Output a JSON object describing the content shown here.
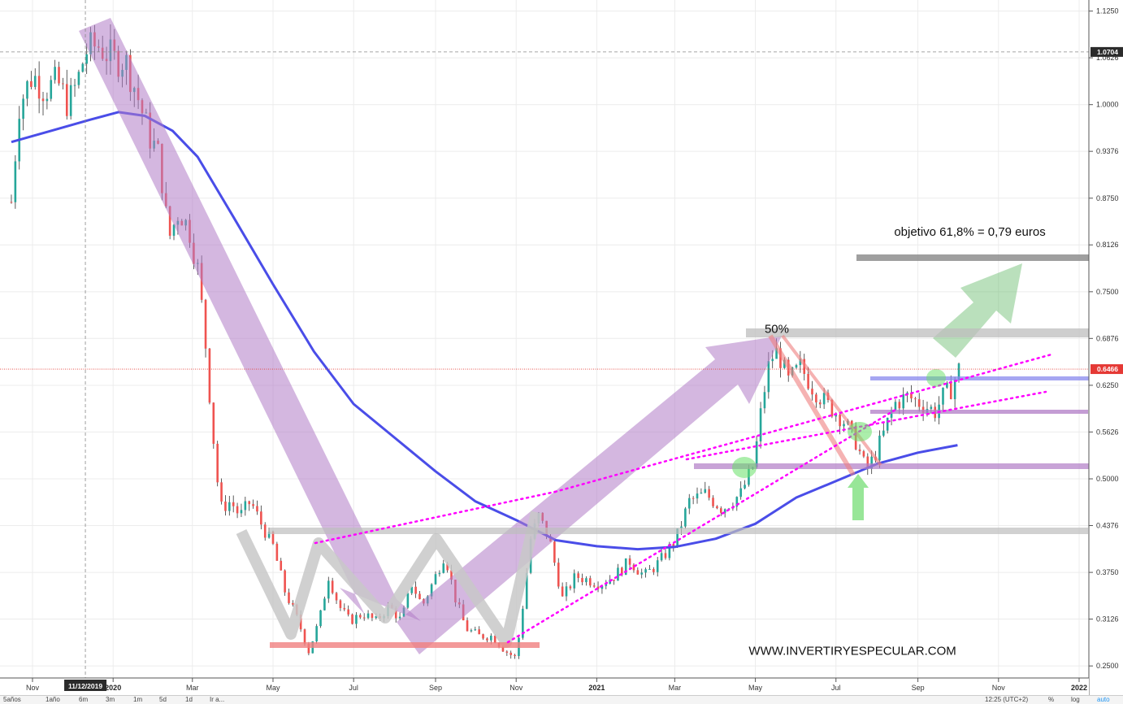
{
  "chart_data": {
    "type": "candlestick",
    "title": "",
    "xlabel": "",
    "ylabel": "",
    "ylim": [
      0.2339,
      1.1398
    ],
    "y_ticks": [
      "1.1250",
      "1.0626",
      "1.0000",
      "0.9376",
      "0.8750",
      "0.8126",
      "0.7500",
      "0.6876",
      "0.6250",
      "0.5626",
      "0.5000",
      "0.4376",
      "0.3750",
      "0.3126",
      "0.2500"
    ],
    "x_ticks": [
      {
        "label": "Nov",
        "date": "2019-11"
      },
      {
        "label": "2020",
        "date": "2020-01"
      },
      {
        "label": "Mar",
        "date": "2020-03"
      },
      {
        "label": "May",
        "date": "2020-05"
      },
      {
        "label": "Jul",
        "date": "2020-07"
      },
      {
        "label": "Sep",
        "date": "2020-09"
      },
      {
        "label": "Nov",
        "date": "2020-11"
      },
      {
        "label": "2021",
        "date": "2021-01"
      },
      {
        "label": "Mar",
        "date": "2021-03"
      },
      {
        "label": "May",
        "date": "2021-05"
      },
      {
        "label": "Jul",
        "date": "2021-07"
      },
      {
        "label": "Sep",
        "date": "2021-09"
      },
      {
        "label": "Nov",
        "date": "2021-11"
      },
      {
        "label": "2022",
        "date": "2022-01"
      }
    ],
    "crosshair_date_label": "11/12/2019",
    "crosshair_price_label": "1.0704",
    "current_price_label": "0.6466",
    "grid": true,
    "colors": {
      "up": "#26a69a",
      "down": "#ef5350",
      "ma": "#4a4de8",
      "current_price": "#e53935",
      "fan_arrow": "#b07cc6",
      "zigzag": "#c8c8c8"
    },
    "series": [
      {
        "type": "moving_average",
        "points": [
          [
            "2019-10-16",
            0.95
          ],
          [
            "2019-11-15",
            0.965
          ],
          [
            "2019-12-15",
            0.98
          ],
          [
            "2020-01-05",
            0.99
          ],
          [
            "2020-01-25",
            0.985
          ],
          [
            "2020-02-15",
            0.965
          ],
          [
            "2020-03-05",
            0.93
          ],
          [
            "2020-04-01",
            0.85
          ],
          [
            "2020-05-01",
            0.76
          ],
          [
            "2020-06-01",
            0.67
          ],
          [
            "2020-07-01",
            0.6
          ],
          [
            "2020-08-01",
            0.555
          ],
          [
            "2020-09-01",
            0.51
          ],
          [
            "2020-10-01",
            0.47
          ],
          [
            "2020-11-01",
            0.445
          ],
          [
            "2020-12-01",
            0.418
          ],
          [
            "2021-01-01",
            0.41
          ],
          [
            "2021-02-01",
            0.406
          ],
          [
            "2021-03-01",
            0.409
          ],
          [
            "2021-04-01",
            0.42
          ],
          [
            "2021-05-01",
            0.44
          ],
          [
            "2021-06-01",
            0.475
          ],
          [
            "2021-07-01",
            0.497
          ],
          [
            "2021-08-01",
            0.52
          ],
          [
            "2021-09-01",
            0.535
          ],
          [
            "2021-10-01",
            0.545
          ]
        ]
      },
      {
        "type": "closing_prices",
        "points": [
          [
            "2019-10-16",
            0.87
          ],
          [
            "2019-10-22",
            1.0
          ],
          [
            "2019-11-01",
            1.04
          ],
          [
            "2019-11-10",
            1.02
          ],
          [
            "2019-11-20",
            1.03
          ],
          [
            "2019-11-28",
            1.0
          ],
          [
            "2019-12-05",
            1.03
          ],
          [
            "2019-12-11",
            1.0704
          ],
          [
            "2019-12-20",
            1.08
          ],
          [
            "2020-01-02",
            1.06
          ],
          [
            "2020-01-10",
            1.06
          ],
          [
            "2020-01-18",
            1.02
          ],
          [
            "2020-01-28",
            0.96
          ],
          [
            "2020-02-05",
            0.93
          ],
          [
            "2020-02-12",
            0.82
          ],
          [
            "2020-02-20",
            0.86
          ],
          [
            "2020-02-28",
            0.83
          ],
          [
            "2020-03-05",
            0.78
          ],
          [
            "2020-03-10",
            0.7
          ],
          [
            "2020-03-16",
            0.57
          ],
          [
            "2020-03-22",
            0.46
          ],
          [
            "2020-03-30",
            0.47
          ],
          [
            "2020-04-06",
            0.45
          ],
          [
            "2020-04-14",
            0.47
          ],
          [
            "2020-04-22",
            0.44
          ],
          [
            "2020-05-01",
            0.41
          ],
          [
            "2020-05-10",
            0.35
          ],
          [
            "2020-05-20",
            0.31
          ],
          [
            "2020-05-28",
            0.27
          ],
          [
            "2020-06-05",
            0.31
          ],
          [
            "2020-06-12",
            0.37
          ],
          [
            "2020-06-20",
            0.33
          ],
          [
            "2020-06-28",
            0.31
          ],
          [
            "2020-07-08",
            0.32
          ],
          [
            "2020-07-18",
            0.31
          ],
          [
            "2020-07-28",
            0.33
          ],
          [
            "2020-08-06",
            0.31
          ],
          [
            "2020-08-14",
            0.36
          ],
          [
            "2020-08-22",
            0.33
          ],
          [
            "2020-09-01",
            0.37
          ],
          [
            "2020-09-08",
            0.4
          ],
          [
            "2020-09-16",
            0.34
          ],
          [
            "2020-09-24",
            0.3
          ],
          [
            "2020-10-04",
            0.29
          ],
          [
            "2020-10-14",
            0.29
          ],
          [
            "2020-10-24",
            0.27
          ],
          [
            "2020-11-01",
            0.26
          ],
          [
            "2020-11-06",
            0.33
          ],
          [
            "2020-11-12",
            0.42
          ],
          [
            "2020-11-18",
            0.45
          ],
          [
            "2020-11-26",
            0.42
          ],
          [
            "2020-12-06",
            0.34
          ],
          [
            "2020-12-16",
            0.37
          ],
          [
            "2021-01-04",
            0.36
          ],
          [
            "2021-01-14",
            0.37
          ],
          [
            "2021-01-26",
            0.39
          ],
          [
            "2021-02-06",
            0.37
          ],
          [
            "2021-02-18",
            0.39
          ],
          [
            "2021-03-02",
            0.42
          ],
          [
            "2021-03-12",
            0.47
          ],
          [
            "2021-03-24",
            0.48
          ],
          [
            "2021-04-06",
            0.46
          ],
          [
            "2021-04-20",
            0.48
          ],
          [
            "2021-04-30",
            0.52
          ],
          [
            "2021-05-06",
            0.6
          ],
          [
            "2021-05-12",
            0.66
          ],
          [
            "2021-05-18",
            0.67
          ],
          [
            "2021-05-26",
            0.63
          ],
          [
            "2021-06-04",
            0.65
          ],
          [
            "2021-06-14",
            0.62
          ],
          [
            "2021-06-24",
            0.6
          ],
          [
            "2021-07-06",
            0.58
          ],
          [
            "2021-07-16",
            0.55
          ],
          [
            "2021-07-24",
            0.51
          ],
          [
            "2021-07-30",
            0.53
          ],
          [
            "2021-08-06",
            0.56
          ],
          [
            "2021-08-14",
            0.6
          ],
          [
            "2021-08-24",
            0.61
          ],
          [
            "2021-09-04",
            0.6
          ],
          [
            "2021-09-14",
            0.59
          ],
          [
            "2021-09-20",
            0.61
          ],
          [
            "2021-09-26",
            0.62
          ],
          [
            "2021-10-02",
            0.6466
          ]
        ]
      }
    ],
    "annotations": [
      {
        "text": "objetivo 61,8% = 0,79 euros",
        "date": "2021-08-14",
        "y": 0.825
      },
      {
        "text": "50%",
        "date": "2021-05-08",
        "y": 0.695
      },
      {
        "text": "WWW.INVERTIRYESPECULAR.COM",
        "date": "2021-04-26",
        "y": 0.265
      }
    ]
  },
  "toolbar": {
    "periods": [
      "5años",
      "1año",
      "6m",
      "3m",
      "1m",
      "5d",
      "1d",
      "Ir a..."
    ],
    "time": "12:25 (UTC+2)",
    "percent": "%",
    "log": "log",
    "auto": "auto"
  }
}
